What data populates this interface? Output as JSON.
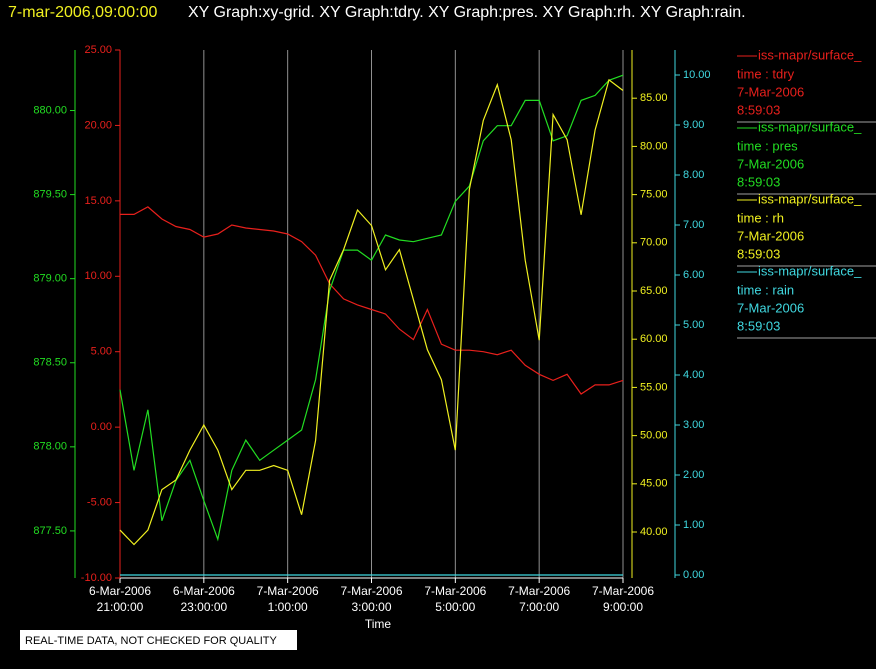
{
  "chart_data": {
    "type": "line",
    "header_time": "7-mar-2006,09:00:00",
    "header": "XY Graph:xy-grid.  XY Graph:tdry.  XY Graph:pres.  XY Graph:rh.  XY Graph:rain.",
    "xlabel": "Time",
    "footnote": "REAL-TIME DATA, NOT CHECKED FOR QUALITY",
    "grid": true,
    "xlim": [
      "2006-03-06T21:00:00",
      "2006-03-07T09:00:00"
    ],
    "xticks": [
      {
        "value": "2006-03-06T21:00:00",
        "label": "6-Mar-2006 21:00:00"
      },
      {
        "value": "2006-03-06T23:00:00",
        "label": "6-Mar-2006 23:00:00"
      },
      {
        "value": "2006-03-07T01:00:00",
        "label": "7-Mar-2006 1:00:00"
      },
      {
        "value": "2006-03-07T03:00:00",
        "label": "7-Mar-2006 3:00:00"
      },
      {
        "value": "2006-03-07T05:00:00",
        "label": "7-Mar-2006 5:00:00"
      },
      {
        "value": "2006-03-07T07:00:00",
        "label": "7-Mar-2006 7:00:00"
      },
      {
        "value": "2006-03-07T09:00:00",
        "label": "7-Mar-2006 9:00:00"
      }
    ],
    "x": [
      "2006-03-06T21:00:00",
      "2006-03-06T21:20:00",
      "2006-03-06T21:40:00",
      "2006-03-06T22:00:00",
      "2006-03-06T22:20:00",
      "2006-03-06T22:40:00",
      "2006-03-06T23:00:00",
      "2006-03-06T23:20:00",
      "2006-03-06T23:40:00",
      "2006-03-07T00:00:00",
      "2006-03-07T00:20:00",
      "2006-03-07T00:40:00",
      "2006-03-07T01:00:00",
      "2006-03-07T01:20:00",
      "2006-03-07T01:40:00",
      "2006-03-07T02:00:00",
      "2006-03-07T02:20:00",
      "2006-03-07T02:40:00",
      "2006-03-07T03:00:00",
      "2006-03-07T03:20:00",
      "2006-03-07T03:40:00",
      "2006-03-07T04:00:00",
      "2006-03-07T04:20:00",
      "2006-03-07T04:40:00",
      "2006-03-07T05:00:00",
      "2006-03-07T05:20:00",
      "2006-03-07T05:40:00",
      "2006-03-07T06:00:00",
      "2006-03-07T06:20:00",
      "2006-03-07T06:40:00",
      "2006-03-07T07:00:00",
      "2006-03-07T07:20:00",
      "2006-03-07T07:40:00",
      "2006-03-07T08:00:00",
      "2006-03-07T08:20:00",
      "2006-03-07T08:40:00",
      "2006-03-07T09:00:00"
    ],
    "series": [
      {
        "name": "iss-mapr/surface_",
        "legend_lines": [
          "time : tdry",
          "7-Mar-2006",
          "8:59:03"
        ],
        "color": "#e8201c",
        "ylim": [
          -10,
          25
        ],
        "yticks": [
          {
            "value": -10,
            "label": "-10.00"
          },
          {
            "value": -5,
            "label": "-5.00"
          },
          {
            "value": 0,
            "label": "0.00"
          },
          {
            "value": 5,
            "label": "5.00"
          },
          {
            "value": 10,
            "label": "10.00"
          },
          {
            "value": 15,
            "label": "15.00"
          },
          {
            "value": 20,
            "label": "20.00"
          },
          {
            "value": 25,
            "label": "25.00"
          }
        ],
        "values": [
          14.1,
          14.1,
          14.6,
          13.8,
          13.3,
          13.1,
          12.6,
          12.8,
          13.4,
          13.2,
          13.1,
          13.0,
          12.8,
          12.3,
          11.4,
          9.5,
          8.5,
          8.1,
          7.8,
          7.5,
          6.5,
          5.8,
          7.8,
          5.5,
          5.1,
          5.1,
          5.0,
          4.8,
          5.1,
          4.1,
          3.5,
          3.1,
          3.5,
          2.2,
          2.8,
          2.8,
          3.1
        ]
      },
      {
        "name": "iss-mapr/surface_",
        "legend_lines": [
          "time : pres",
          "7-Mar-2006",
          "8:59:03"
        ],
        "color": "#22dd22",
        "ylim": [
          877.22,
          880.36
        ],
        "yticks": [
          {
            "value": 877.5,
            "label": "877.50"
          },
          {
            "value": 878,
            "label": "878.00"
          },
          {
            "value": 878.5,
            "label": "878.50"
          },
          {
            "value": 879,
            "label": "879.00"
          },
          {
            "value": 879.5,
            "label": "879.50"
          },
          {
            "value": 880,
            "label": "880.00"
          }
        ],
        "values": [
          878.34,
          877.86,
          878.22,
          877.56,
          877.8,
          877.92,
          877.68,
          877.45,
          877.86,
          878.04,
          877.92,
          877.98,
          878.04,
          878.1,
          878.4,
          878.93,
          879.17,
          879.17,
          879.11,
          879.26,
          879.23,
          879.22,
          879.24,
          879.26,
          879.46,
          879.55,
          879.82,
          879.91,
          879.91,
          880.06,
          880.06,
          879.82,
          879.85,
          880.06,
          880.09,
          880.18,
          880.21
        ]
      },
      {
        "name": "iss-mapr/surface_",
        "legend_lines": [
          "time : rh",
          "7-Mar-2006",
          "8:59:03"
        ],
        "color": "#f0f020",
        "ylim": [
          35.23,
          90
        ],
        "yticks": [
          {
            "value": 40,
            "label": "40.00"
          },
          {
            "value": 45,
            "label": "45.00"
          },
          {
            "value": 50,
            "label": "50.00"
          },
          {
            "value": 55,
            "label": "55.00"
          },
          {
            "value": 60,
            "label": "60.00"
          },
          {
            "value": 65,
            "label": "65.00"
          },
          {
            "value": 70,
            "label": "70.00"
          },
          {
            "value": 75,
            "label": "75.00"
          },
          {
            "value": 80,
            "label": "80.00"
          },
          {
            "value": 85,
            "label": "85.00"
          }
        ],
        "values": [
          40.2,
          38.7,
          40.2,
          44.4,
          45.4,
          48.5,
          51.1,
          48.5,
          44.4,
          46.4,
          46.4,
          46.9,
          46.4,
          41.8,
          49.5,
          66.1,
          69.3,
          73.4,
          71.8,
          67.2,
          69.3,
          64.1,
          58.9,
          55.8,
          48.5,
          75.5,
          82.7,
          86.4,
          80.7,
          68.2,
          59.9,
          83.3,
          80.7,
          72.9,
          81.7,
          86.9,
          85.8
        ]
      },
      {
        "name": "iss-mapr/surface_",
        "legend_lines": [
          "time : rain",
          "7-Mar-2006",
          "8:59:03"
        ],
        "color": "#40d8e0",
        "ylim": [
          -0.06,
          10.5
        ],
        "yticks": [
          {
            "value": 0,
            "label": "0.00"
          },
          {
            "value": 1,
            "label": "1.00"
          },
          {
            "value": 2,
            "label": "2.00"
          },
          {
            "value": 3,
            "label": "3.00"
          },
          {
            "value": 4,
            "label": "4.00"
          },
          {
            "value": 5,
            "label": "5.00"
          },
          {
            "value": 6,
            "label": "6.00"
          },
          {
            "value": 7,
            "label": "7.00"
          },
          {
            "value": 8,
            "label": "8.00"
          },
          {
            "value": 9,
            "label": "9.00"
          },
          {
            "value": 10,
            "label": "10.00"
          }
        ],
        "values": [
          0,
          0,
          0,
          0,
          0,
          0,
          0,
          0,
          0,
          0,
          0,
          0,
          0,
          0,
          0,
          0,
          0,
          0,
          0,
          0,
          0,
          0,
          0,
          0,
          0,
          0,
          0,
          0,
          0,
          0,
          0,
          0,
          0,
          0,
          0,
          0,
          0
        ]
      }
    ]
  }
}
